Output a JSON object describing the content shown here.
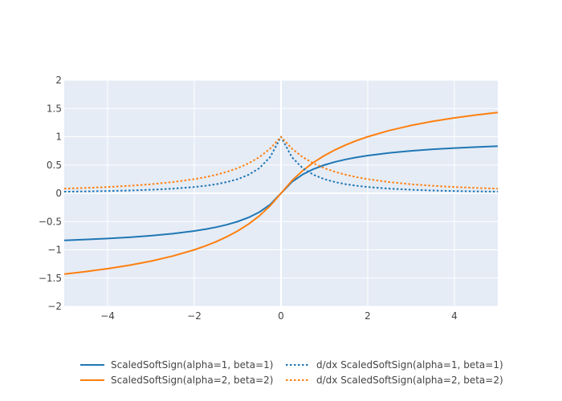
{
  "chart_data": {
    "type": "line",
    "title": "",
    "xlabel": "",
    "ylabel": "",
    "xlim": [
      -5,
      5
    ],
    "ylim": [
      -2,
      2
    ],
    "x_ticks": [
      -4,
      -2,
      0,
      2,
      4
    ],
    "x_tick_labels": [
      "−4",
      "−2",
      "0",
      "2",
      "4"
    ],
    "y_ticks": [
      -2,
      -1.5,
      -1,
      -0.5,
      0,
      0.5,
      1,
      1.5,
      2
    ],
    "y_tick_labels": [
      "−2",
      "−1.5",
      "−1",
      "−0.5",
      "0",
      "0.5",
      "1",
      "1.5",
      "2"
    ],
    "grid": true,
    "legend_position": "bottom",
    "x": [
      -5,
      -4.5,
      -4,
      -3.5,
      -3,
      -2.5,
      -2,
      -1.75,
      -1.5,
      -1.25,
      -1,
      -0.75,
      -0.5,
      -0.25,
      0,
      0.25,
      0.5,
      0.75,
      1,
      1.25,
      1.5,
      1.75,
      2,
      2.5,
      3,
      3.5,
      4,
      4.5,
      5
    ],
    "series": [
      {
        "name": "ScaledSoftSign(alpha=1, beta=1)",
        "color": "#1f77b4",
        "dash": "solid",
        "values": [
          -0.833,
          -0.818,
          -0.8,
          -0.778,
          -0.75,
          -0.714,
          -0.667,
          -0.636,
          -0.6,
          -0.556,
          -0.5,
          -0.429,
          -0.333,
          -0.2,
          0,
          0.2,
          0.333,
          0.429,
          0.5,
          0.556,
          0.6,
          0.636,
          0.667,
          0.714,
          0.75,
          0.778,
          0.8,
          0.818,
          0.833
        ]
      },
      {
        "name": "ScaledSoftSign(alpha=2, beta=2)",
        "color": "#ff7f0e",
        "dash": "solid",
        "values": [
          -1.429,
          -1.385,
          -1.333,
          -1.273,
          -1.2,
          -1.111,
          -1.0,
          -0.933,
          -0.857,
          -0.769,
          -0.667,
          -0.545,
          -0.4,
          -0.222,
          0,
          0.222,
          0.4,
          0.545,
          0.667,
          0.769,
          0.857,
          0.933,
          1.0,
          1.111,
          1.2,
          1.273,
          1.333,
          1.385,
          1.429
        ]
      },
      {
        "name": "d/dx ScaledSoftSign(alpha=1, beta=1)",
        "color": "#1f77b4",
        "dash": "dot",
        "values": [
          0.028,
          0.033,
          0.04,
          0.049,
          0.063,
          0.082,
          0.111,
          0.132,
          0.16,
          0.198,
          0.25,
          0.327,
          0.444,
          0.64,
          1.0,
          0.64,
          0.444,
          0.327,
          0.25,
          0.198,
          0.16,
          0.132,
          0.111,
          0.082,
          0.063,
          0.049,
          0.04,
          0.033,
          0.028
        ]
      },
      {
        "name": "d/dx ScaledSoftSign(alpha=2, beta=2)",
        "color": "#ff7f0e",
        "dash": "dot",
        "values": [
          0.082,
          0.095,
          0.111,
          0.132,
          0.16,
          0.198,
          0.25,
          0.284,
          0.327,
          0.379,
          0.444,
          0.529,
          0.64,
          0.79,
          1.0,
          0.79,
          0.64,
          0.529,
          0.444,
          0.379,
          0.327,
          0.284,
          0.25,
          0.198,
          0.16,
          0.132,
          0.111,
          0.095,
          0.082
        ]
      }
    ]
  }
}
